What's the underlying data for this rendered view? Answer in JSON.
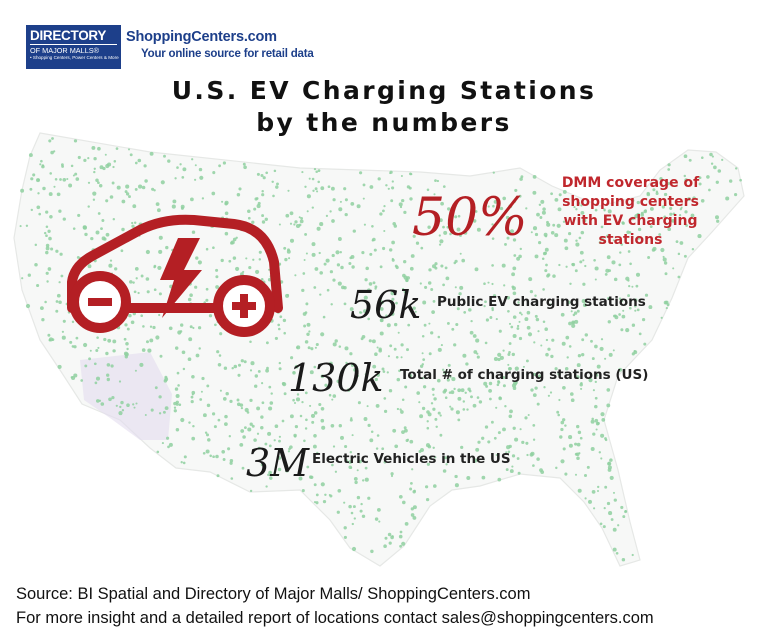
{
  "brand": {
    "logo_main": "DIRECTORY",
    "logo_sub": "OF MAJOR MALLS®",
    "logo_tiny": "• Shopping Centers, Power Centers & More",
    "site_name": "ShoppingCenters.com",
    "tagline": "Your online source for retail data",
    "colors": {
      "navy": "#1d3f8a",
      "red": "#c0272d",
      "map_dots": "#8fd0a0"
    }
  },
  "title": {
    "line1": "U.S. EV Charging Stations",
    "line2": "by the numbers"
  },
  "stats": [
    {
      "value": "50%",
      "label": "DMM coverage of shopping centers with EV charging stations"
    },
    {
      "value": "56k",
      "label": "Public EV charging stations"
    },
    {
      "value": "130k",
      "label": "Total # of charging stations (US)"
    },
    {
      "value": "3M",
      "label": "Electric Vehicles in the US"
    }
  ],
  "icon": "ev-car-plus-minus-lightning-icon",
  "map": "us-map-ev-stations",
  "footer": {
    "source": "Source: BI Spatial and Directory of Major Malls/ ShoppingCenters.com",
    "contact": "For more insight and a detailed report of locations contact sales@shoppingcenters.com"
  }
}
